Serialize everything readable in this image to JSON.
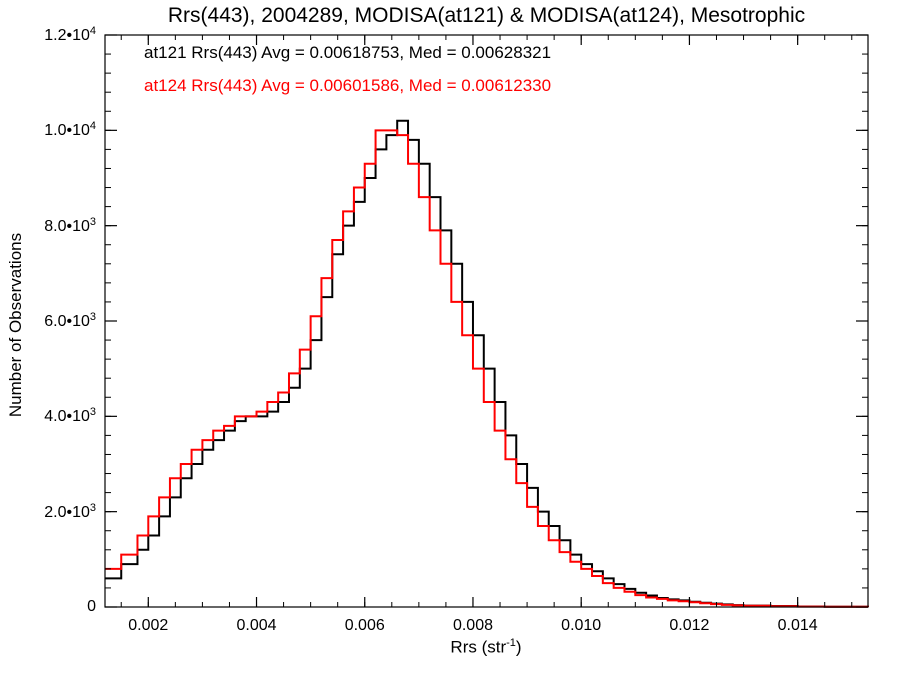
{
  "chart_data": {
    "type": "line",
    "title": "Rrs(443), 2004289, MODISA(at121) & MODISA(at124), Mesotrophic",
    "xlabel": "Rrs (str",
    "xlabel_superscript": "-1",
    "xlabel_suffix": ")",
    "ylabel": "Number of Observations",
    "xlim": [
      0.0012,
      0.0153
    ],
    "ylim": [
      0,
      12000
    ],
    "xticks": [
      {
        "value": 0.002,
        "label": "0.002"
      },
      {
        "value": 0.004,
        "label": "0.004"
      },
      {
        "value": 0.006,
        "label": "0.006"
      },
      {
        "value": 0.008,
        "label": "0.008"
      },
      {
        "value": 0.01,
        "label": "0.010"
      },
      {
        "value": 0.012,
        "label": "0.012"
      },
      {
        "value": 0.014,
        "label": "0.014"
      }
    ],
    "yticks": [
      {
        "value": 0,
        "mantissa": "0",
        "exp": ""
      },
      {
        "value": 2000,
        "mantissa": "2.0•10",
        "exp": "3"
      },
      {
        "value": 4000,
        "mantissa": "4.0•10",
        "exp": "3"
      },
      {
        "value": 6000,
        "mantissa": "6.0•10",
        "exp": "3"
      },
      {
        "value": 8000,
        "mantissa": "8.0•10",
        "exp": "3"
      },
      {
        "value": 10000,
        "mantissa": "1.0•10",
        "exp": "4"
      },
      {
        "value": 12000,
        "mantissa": "1.2•10",
        "exp": "4"
      }
    ],
    "annotations": [
      {
        "text": "at121 Rrs(443) Avg = 0.00618753, Med = 0.00628321",
        "color": "#000000"
      },
      {
        "text": "at124 Rrs(443) Avg = 0.00601586, Med = 0.00612330",
        "color": "#ff0000"
      }
    ],
    "step": true,
    "grid": false,
    "series": [
      {
        "name": "at121",
        "color": "#000000",
        "x": [
          0.0012,
          0.0015,
          0.0018,
          0.002,
          0.0022,
          0.0024,
          0.0026,
          0.0028,
          0.003,
          0.0032,
          0.0034,
          0.0036,
          0.0038,
          0.004,
          0.0042,
          0.0044,
          0.0046,
          0.0048,
          0.005,
          0.0052,
          0.0054,
          0.0056,
          0.0058,
          0.006,
          0.0062,
          0.0064,
          0.0066,
          0.0068,
          0.007,
          0.0072,
          0.0074,
          0.0076,
          0.0078,
          0.008,
          0.0082,
          0.0084,
          0.0086,
          0.0088,
          0.009,
          0.0092,
          0.0094,
          0.0096,
          0.0098,
          0.01,
          0.0102,
          0.0104,
          0.0106,
          0.0108,
          0.011,
          0.0112,
          0.0114,
          0.0116,
          0.0118,
          0.012,
          0.0122,
          0.0124,
          0.0126,
          0.0128,
          0.013,
          0.0135,
          0.014,
          0.0145,
          0.0153
        ],
        "y": [
          600,
          900,
          1200,
          1500,
          1900,
          2300,
          2700,
          3000,
          3300,
          3500,
          3700,
          3900,
          4000,
          4000,
          4100,
          4300,
          4600,
          5000,
          5600,
          6500,
          7400,
          8000,
          8500,
          9000,
          9600,
          9900,
          10200,
          9800,
          9300,
          8600,
          7900,
          7200,
          6400,
          5700,
          5000,
          4300,
          3600,
          3000,
          2500,
          2000,
          1700,
          1400,
          1100,
          900,
          750,
          600,
          480,
          380,
          300,
          240,
          190,
          160,
          140,
          110,
          90,
          70,
          55,
          40,
          30,
          20,
          10,
          5,
          0
        ]
      },
      {
        "name": "at124",
        "color": "#ff0000",
        "x": [
          0.0012,
          0.0015,
          0.0018,
          0.002,
          0.0022,
          0.0024,
          0.0026,
          0.0028,
          0.003,
          0.0032,
          0.0034,
          0.0036,
          0.0038,
          0.004,
          0.0042,
          0.0044,
          0.0046,
          0.0048,
          0.005,
          0.0052,
          0.0054,
          0.0056,
          0.0058,
          0.006,
          0.0062,
          0.0064,
          0.0066,
          0.0068,
          0.007,
          0.0072,
          0.0074,
          0.0076,
          0.0078,
          0.008,
          0.0082,
          0.0084,
          0.0086,
          0.0088,
          0.009,
          0.0092,
          0.0094,
          0.0096,
          0.0098,
          0.01,
          0.0102,
          0.0104,
          0.0106,
          0.0108,
          0.011,
          0.0112,
          0.0114,
          0.0116,
          0.0118,
          0.012,
          0.0122,
          0.0124,
          0.0126,
          0.0128,
          0.013,
          0.0135,
          0.014,
          0.0145,
          0.0153
        ],
        "y": [
          800,
          1100,
          1500,
          1900,
          2300,
          2700,
          3000,
          3300,
          3500,
          3700,
          3800,
          4000,
          4000,
          4100,
          4300,
          4500,
          4900,
          5400,
          6100,
          6900,
          7700,
          8300,
          8800,
          9300,
          10000,
          10000,
          9900,
          9300,
          8600,
          7900,
          7200,
          6400,
          5700,
          5000,
          4300,
          3700,
          3100,
          2600,
          2100,
          1700,
          1400,
          1150,
          950,
          800,
          650,
          500,
          400,
          320,
          250,
          200,
          170,
          140,
          120,
          100,
          80,
          60,
          45,
          35,
          25,
          15,
          8,
          4,
          0
        ]
      }
    ]
  }
}
